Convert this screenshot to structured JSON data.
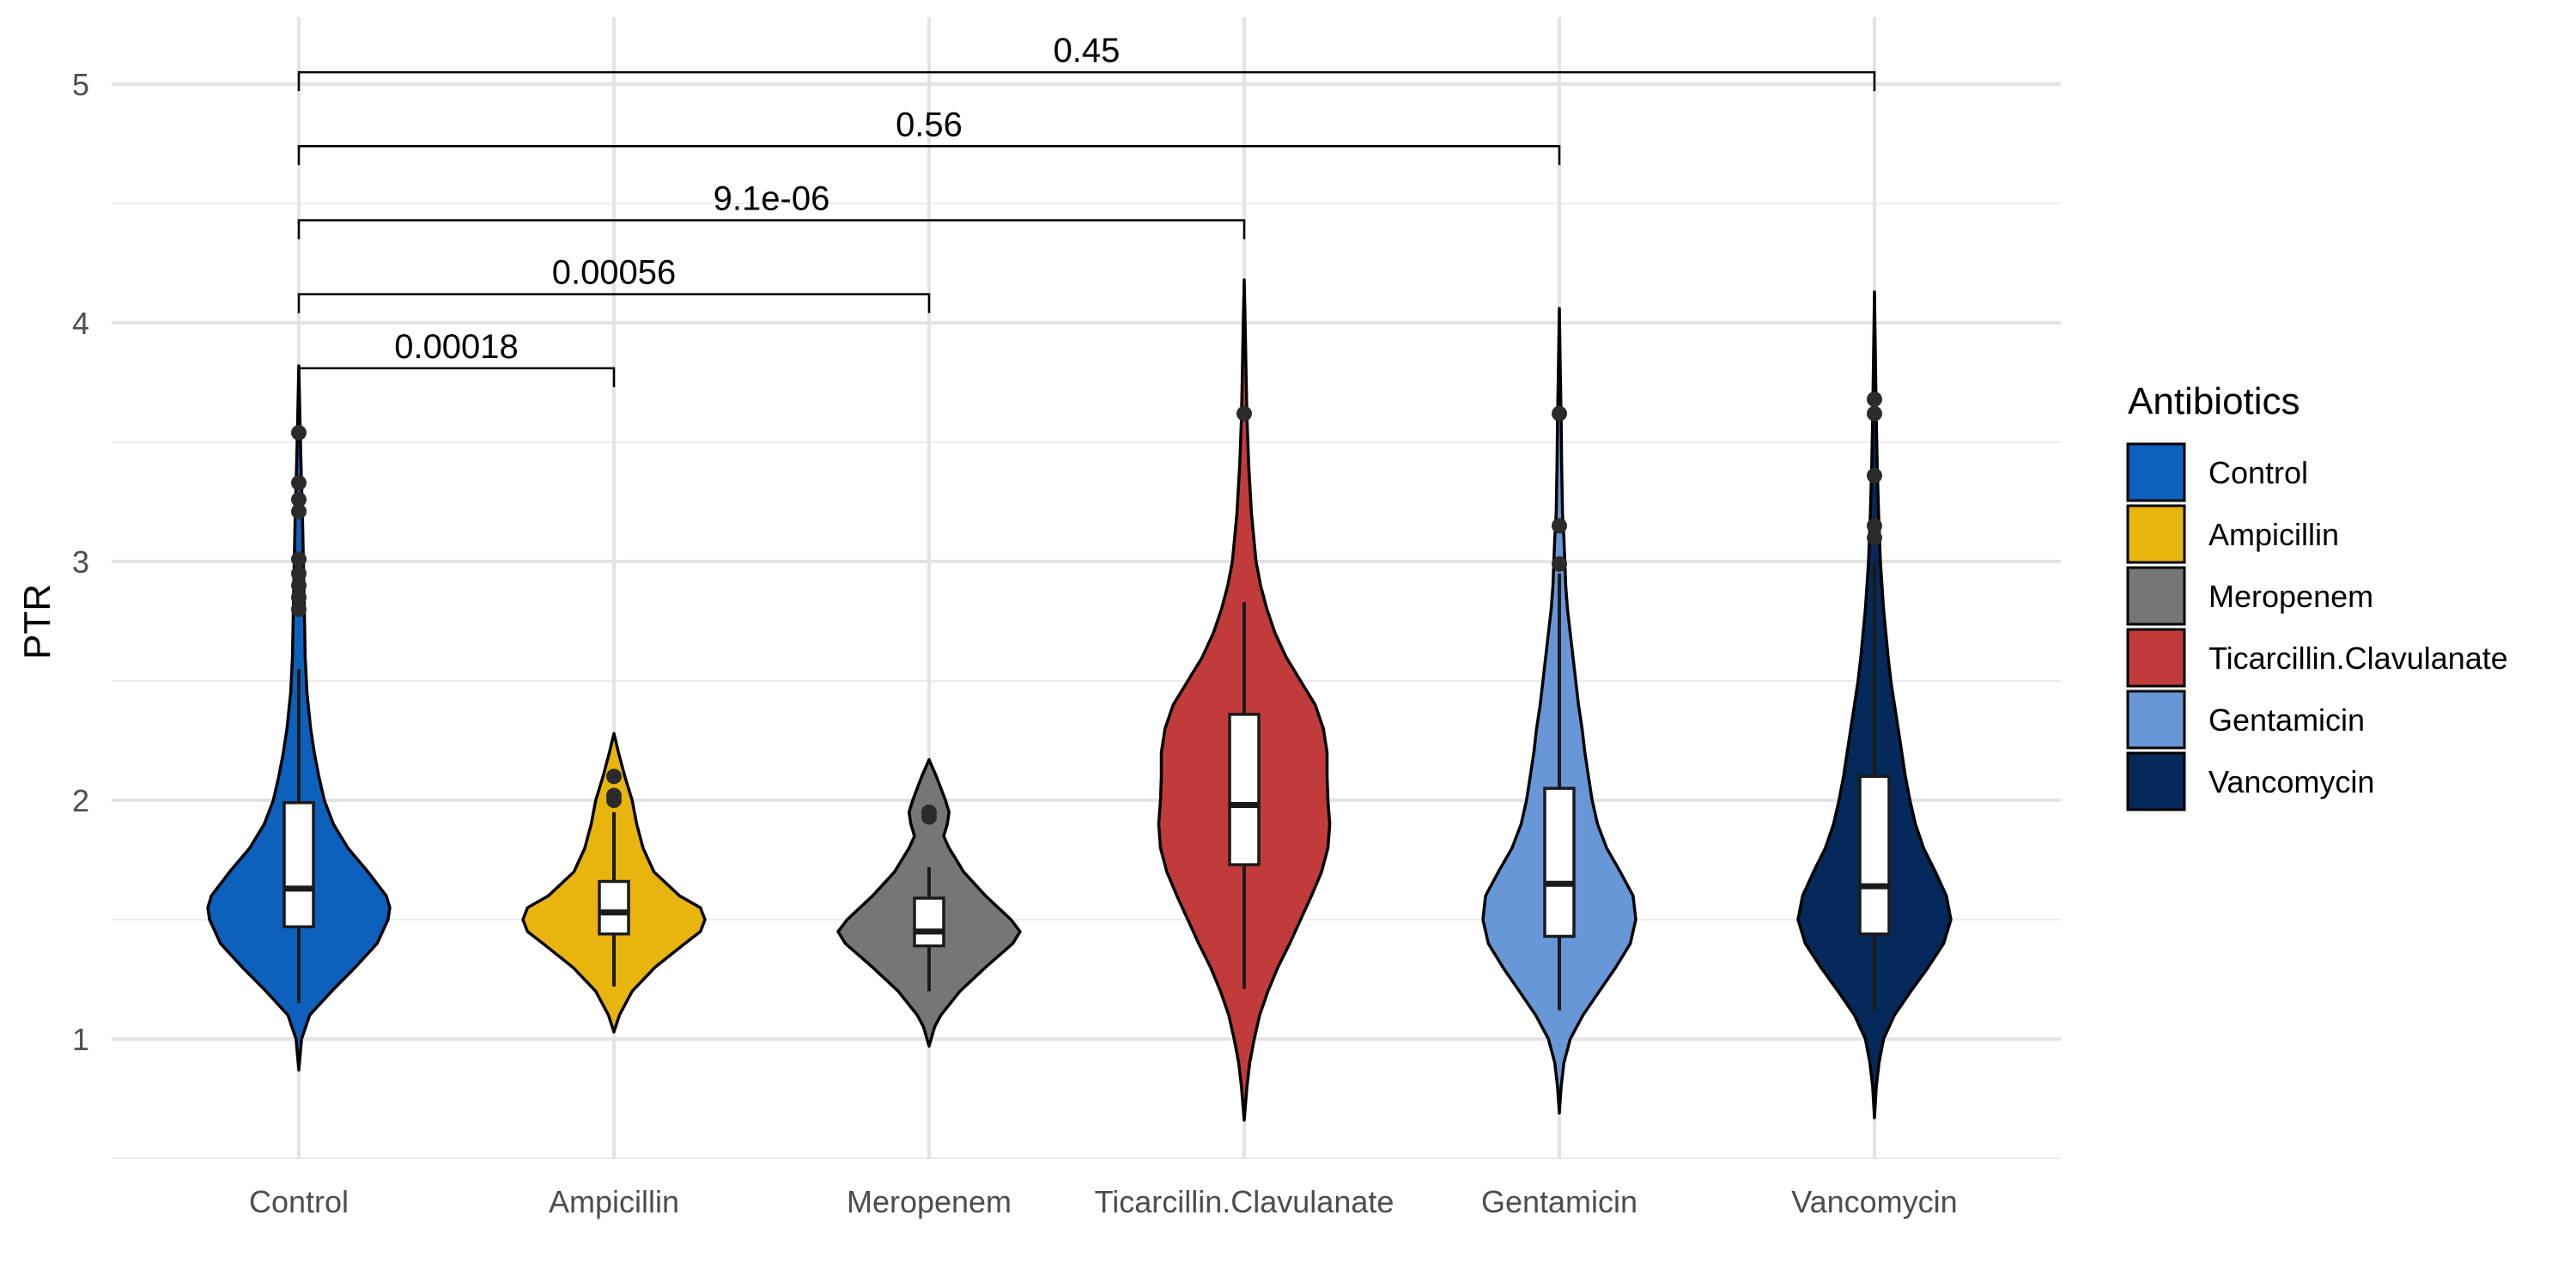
{
  "chart_data": {
    "type": "violin",
    "ylabel": "PTR",
    "ylim": [
      0.45,
      5.3
    ],
    "yticks": [
      1,
      2,
      3,
      4,
      5
    ],
    "grid": true,
    "legend": {
      "title": "Antibiotics",
      "placement": "right"
    },
    "categories": [
      "Control",
      "Ampicillin",
      "Meropenem",
      "Ticarcillin.Clavulanate",
      "Gentamicin",
      "Vancomycin"
    ],
    "groups": [
      {
        "name": "Control",
        "color": "#0E60BD",
        "ymin": 0.87,
        "ymax": 3.82,
        "box": {
          "q1": 1.47,
          "median": 1.63,
          "q3": 1.99,
          "lower": 1.15,
          "upper": 2.55
        },
        "outliers": [
          2.8,
          2.85,
          2.9,
          2.95,
          3.01,
          3.21,
          3.26,
          3.33,
          3.54
        ],
        "density": [
          [
            0.87,
            0.0
          ],
          [
            1.0,
            0.03
          ],
          [
            1.1,
            0.12
          ],
          [
            1.2,
            0.36
          ],
          [
            1.3,
            0.62
          ],
          [
            1.4,
            0.86
          ],
          [
            1.5,
            0.98
          ],
          [
            1.55,
            1.0
          ],
          [
            1.6,
            0.96
          ],
          [
            1.7,
            0.76
          ],
          [
            1.8,
            0.54
          ],
          [
            1.9,
            0.38
          ],
          [
            2.0,
            0.28
          ],
          [
            2.1,
            0.22
          ],
          [
            2.2,
            0.17
          ],
          [
            2.3,
            0.13
          ],
          [
            2.45,
            0.09
          ],
          [
            2.6,
            0.07
          ],
          [
            2.8,
            0.06
          ],
          [
            3.0,
            0.05
          ],
          [
            3.2,
            0.04
          ],
          [
            3.4,
            0.025
          ],
          [
            3.6,
            0.012
          ],
          [
            3.82,
            0.0
          ]
        ]
      },
      {
        "name": "Ampicillin",
        "color": "#E8B40E",
        "ymin": 1.03,
        "ymax": 2.28,
        "box": {
          "q1": 1.44,
          "median": 1.53,
          "q3": 1.66,
          "lower": 1.22,
          "upper": 1.95
        },
        "outliers": [
          2.0,
          2.02,
          2.1
        ],
        "density": [
          [
            1.03,
            0.0
          ],
          [
            1.1,
            0.06
          ],
          [
            1.2,
            0.2
          ],
          [
            1.3,
            0.45
          ],
          [
            1.4,
            0.78
          ],
          [
            1.45,
            0.95
          ],
          [
            1.5,
            1.0
          ],
          [
            1.55,
            0.95
          ],
          [
            1.6,
            0.72
          ],
          [
            1.7,
            0.44
          ],
          [
            1.8,
            0.32
          ],
          [
            1.9,
            0.25
          ],
          [
            2.0,
            0.2
          ],
          [
            2.1,
            0.12
          ],
          [
            2.2,
            0.05
          ],
          [
            2.28,
            0.0
          ]
        ]
      },
      {
        "name": "Meropenem",
        "color": "#767676",
        "ymin": 0.97,
        "ymax": 2.17,
        "box": {
          "q1": 1.39,
          "median": 1.45,
          "q3": 1.59,
          "lower": 1.2,
          "upper": 1.72
        },
        "outliers": [
          1.93,
          1.95
        ],
        "density": [
          [
            0.97,
            0.0
          ],
          [
            1.05,
            0.06
          ],
          [
            1.1,
            0.13
          ],
          [
            1.2,
            0.34
          ],
          [
            1.3,
            0.62
          ],
          [
            1.4,
            0.92
          ],
          [
            1.45,
            1.0
          ],
          [
            1.5,
            0.9
          ],
          [
            1.6,
            0.62
          ],
          [
            1.7,
            0.38
          ],
          [
            1.8,
            0.22
          ],
          [
            1.85,
            0.16
          ],
          [
            1.9,
            0.2
          ],
          [
            1.95,
            0.22
          ],
          [
            2.0,
            0.18
          ],
          [
            2.1,
            0.08
          ],
          [
            2.17,
            0.0
          ]
        ]
      },
      {
        "name": "Ticarcillin.Clavulanate",
        "color": "#C23B3B",
        "ymin": 0.66,
        "ymax": 4.18,
        "box": {
          "q1": 1.73,
          "median": 1.98,
          "q3": 2.36,
          "lower": 1.21,
          "upper": 2.83
        },
        "outliers": [
          3.62
        ],
        "density": [
          [
            0.66,
            0.0
          ],
          [
            0.8,
            0.03
          ],
          [
            0.9,
            0.06
          ],
          [
            1.0,
            0.11
          ],
          [
            1.1,
            0.17
          ],
          [
            1.2,
            0.26
          ],
          [
            1.3,
            0.37
          ],
          [
            1.4,
            0.5
          ],
          [
            1.5,
            0.62
          ],
          [
            1.6,
            0.74
          ],
          [
            1.7,
            0.85
          ],
          [
            1.8,
            0.92
          ],
          [
            1.9,
            0.94
          ],
          [
            2.0,
            0.92
          ],
          [
            2.1,
            0.91
          ],
          [
            2.2,
            0.91
          ],
          [
            2.3,
            0.87
          ],
          [
            2.4,
            0.78
          ],
          [
            2.5,
            0.62
          ],
          [
            2.6,
            0.46
          ],
          [
            2.7,
            0.34
          ],
          [
            2.8,
            0.25
          ],
          [
            2.9,
            0.18
          ],
          [
            3.0,
            0.13
          ],
          [
            3.2,
            0.08
          ],
          [
            3.4,
            0.05
          ],
          [
            3.6,
            0.03
          ],
          [
            3.8,
            0.02
          ],
          [
            4.0,
            0.01
          ],
          [
            4.18,
            0.0
          ]
        ]
      },
      {
        "name": "Gentamicin",
        "color": "#6897D8",
        "ymin": 0.69,
        "ymax": 4.06,
        "box": {
          "q1": 1.43,
          "median": 1.65,
          "q3": 2.05,
          "lower": 1.12,
          "upper": 2.95
        },
        "outliers": [
          2.99,
          3.15,
          3.62
        ],
        "density": [
          [
            0.69,
            0.0
          ],
          [
            0.8,
            0.02
          ],
          [
            0.9,
            0.05
          ],
          [
            1.0,
            0.12
          ],
          [
            1.1,
            0.26
          ],
          [
            1.2,
            0.44
          ],
          [
            1.3,
            0.62
          ],
          [
            1.4,
            0.78
          ],
          [
            1.5,
            0.84
          ],
          [
            1.6,
            0.81
          ],
          [
            1.7,
            0.67
          ],
          [
            1.8,
            0.52
          ],
          [
            1.9,
            0.42
          ],
          [
            2.0,
            0.36
          ],
          [
            2.1,
            0.32
          ],
          [
            2.2,
            0.28
          ],
          [
            2.3,
            0.25
          ],
          [
            2.4,
            0.21
          ],
          [
            2.5,
            0.18
          ],
          [
            2.6,
            0.15
          ],
          [
            2.7,
            0.12
          ],
          [
            2.8,
            0.09
          ],
          [
            2.9,
            0.07
          ],
          [
            3.0,
            0.06
          ],
          [
            3.1,
            0.05
          ],
          [
            3.2,
            0.035
          ],
          [
            3.4,
            0.025
          ],
          [
            3.6,
            0.02
          ],
          [
            3.8,
            0.01
          ],
          [
            4.06,
            0.0
          ]
        ]
      },
      {
        "name": "Vancomycin",
        "color": "#05295A",
        "ymin": 0.67,
        "ymax": 4.13,
        "box": {
          "q1": 1.44,
          "median": 1.64,
          "q3": 2.1,
          "lower": 1.12,
          "upper": 3.0
        },
        "outliers": [
          3.1,
          3.15,
          3.36,
          3.62,
          3.68
        ],
        "density": [
          [
            0.67,
            0.0
          ],
          [
            0.8,
            0.02
          ],
          [
            0.9,
            0.05
          ],
          [
            1.0,
            0.1
          ],
          [
            1.1,
            0.22
          ],
          [
            1.2,
            0.4
          ],
          [
            1.3,
            0.59
          ],
          [
            1.4,
            0.76
          ],
          [
            1.5,
            0.84
          ],
          [
            1.6,
            0.79
          ],
          [
            1.7,
            0.67
          ],
          [
            1.8,
            0.54
          ],
          [
            1.9,
            0.45
          ],
          [
            2.0,
            0.39
          ],
          [
            2.1,
            0.34
          ],
          [
            2.2,
            0.3
          ],
          [
            2.3,
            0.26
          ],
          [
            2.4,
            0.22
          ],
          [
            2.5,
            0.18
          ],
          [
            2.6,
            0.15
          ],
          [
            2.8,
            0.1
          ],
          [
            3.0,
            0.065
          ],
          [
            3.2,
            0.045
          ],
          [
            3.4,
            0.03
          ],
          [
            3.6,
            0.02
          ],
          [
            3.8,
            0.012
          ],
          [
            4.13,
            0.0
          ]
        ]
      }
    ],
    "comparisons": [
      {
        "from": "Control",
        "to": "Ampicillin",
        "y": 3.81,
        "label": "0.00018"
      },
      {
        "from": "Control",
        "to": "Meropenem",
        "y": 4.12,
        "label": "0.00056"
      },
      {
        "from": "Control",
        "to": "Ticarcillin.Clavulanate",
        "y": 4.43,
        "label": "9.1e-06"
      },
      {
        "from": "Control",
        "to": "Gentamicin",
        "y": 4.74,
        "label": "0.56"
      },
      {
        "from": "Control",
        "to": "Vancomycin",
        "y": 5.05,
        "label": "0.45"
      }
    ]
  }
}
